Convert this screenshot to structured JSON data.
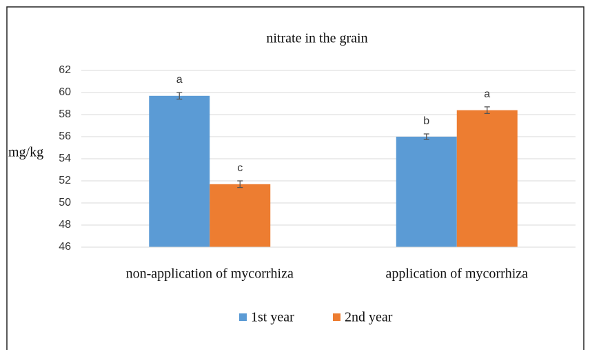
{
  "chart_data": {
    "type": "bar",
    "title": "nitrate in the grain",
    "ylabel": "mg/kg",
    "categories": [
      "non-application of mycorrhiza",
      "application of mycorrhiza"
    ],
    "series": [
      {
        "name": "1st year",
        "color": "#5b9bd5",
        "values": [
          59.7,
          56.0
        ],
        "errors": [
          0.3,
          0.25
        ],
        "annotations": [
          "a",
          "b"
        ]
      },
      {
        "name": "2nd year",
        "color": "#ed7d31",
        "values": [
          51.7,
          58.4
        ],
        "errors": [
          0.3,
          0.3
        ],
        "annotations": [
          "c",
          "a"
        ]
      }
    ],
    "ylim": [
      46,
      62
    ],
    "yticks": [
      46,
      48,
      50,
      52,
      54,
      56,
      58,
      60,
      62
    ],
    "grid": true,
    "legend": "bottom"
  }
}
